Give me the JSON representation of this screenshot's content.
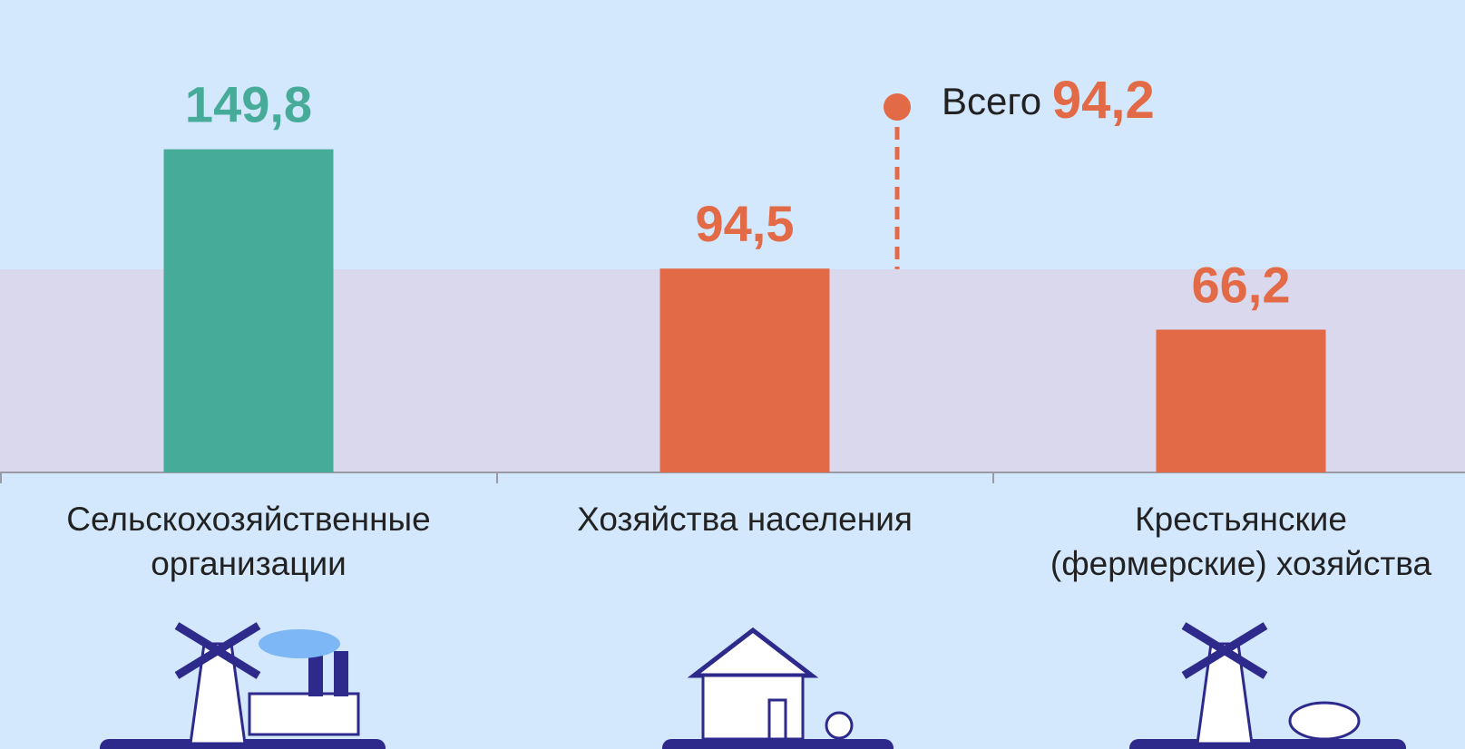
{
  "chart_data": {
    "type": "bar",
    "categories": [
      "Сельскохозяйственные\nорганизации",
      "Хозяйства населения",
      "Крестьянские\n(фермерские) хозяйства"
    ],
    "values": [
      149.8,
      94.5,
      66.2
    ],
    "value_labels": [
      "149,8",
      "94,5",
      "66,2"
    ],
    "colors": [
      "#47ab99",
      "#e36a47",
      "#e36a47"
    ],
    "ylim": [
      0,
      219
    ],
    "total_label": "Всего",
    "total": 94.2,
    "total_value_label": "94,2",
    "total_color": "#e36a47"
  }
}
